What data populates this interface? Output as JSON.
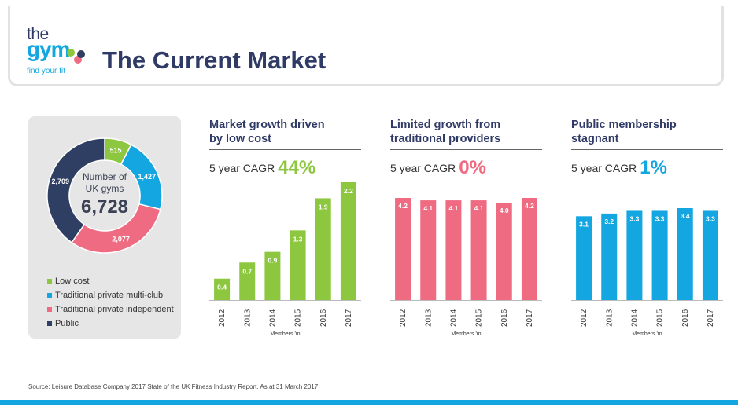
{
  "header": {
    "logo": {
      "line1": "the",
      "line2": "gym",
      "tagline": "find your fit"
    },
    "title": "The Current Market"
  },
  "colors": {
    "navy": "#2f3a66",
    "green": "#8dc63f",
    "blue": "#13a6e0",
    "pink": "#ee6b82",
    "dark": "#2e3f63"
  },
  "chart_data": [
    {
      "type": "pie",
      "variant": "donut",
      "title": "Number of UK gyms",
      "center_label": [
        "Number of",
        "UK gyms"
      ],
      "total_label": "6,728",
      "categories": [
        "Low cost",
        "Traditional private multi-club",
        "Traditional private independent",
        "Public"
      ],
      "values": [
        515,
        1427,
        2077,
        2709
      ],
      "value_labels": [
        "515",
        "1,427",
        "2,077",
        "2,709"
      ],
      "colors": [
        "#8dc63f",
        "#13a6e0",
        "#ee6b82",
        "#2e3f63"
      ],
      "legend": "bottom"
    },
    {
      "type": "bar",
      "title": "Market growth driven by low cost",
      "title_lines": [
        "Market growth driven",
        "by low cost"
      ],
      "cagr_label": "5 year CAGR",
      "cagr_value": "44%",
      "color": "#8dc63f",
      "categories": [
        "2012",
        "2013",
        "2014",
        "2015",
        "2016",
        "2017"
      ],
      "values": [
        0.4,
        0.7,
        0.9,
        1.3,
        1.9,
        2.2
      ],
      "value_labels": [
        "0.4",
        "0.7",
        "0.9",
        "1.3",
        "1.9",
        "2.2"
      ],
      "xlabel": "Members 'm",
      "ylim": [
        0,
        2.2
      ]
    },
    {
      "type": "bar",
      "title": "Limited growth from traditional providers",
      "title_lines": [
        "Limited growth from",
        "traditional providers"
      ],
      "cagr_label": "5 year CAGR",
      "cagr_value": "0%",
      "color": "#ee6b82",
      "categories": [
        "2012",
        "2013",
        "2014",
        "2015",
        "2016",
        "2017"
      ],
      "values": [
        4.2,
        4.1,
        4.1,
        4.1,
        4.0,
        4.2
      ],
      "value_labels": [
        "4.2",
        "4.1",
        "4.1",
        "4.1",
        "4.0",
        "4.2"
      ],
      "xlabel": "Members 'm",
      "ylim": [
        0,
        4.2
      ]
    },
    {
      "type": "bar",
      "title": "Public membership stagnant",
      "title_lines": [
        "Public membership",
        "stagnant"
      ],
      "cagr_label": "5 year CAGR",
      "cagr_value": "1%",
      "color": "#13a6e0",
      "categories": [
        "2012",
        "2013",
        "2014",
        "2015",
        "2016",
        "2017"
      ],
      "values": [
        3.1,
        3.2,
        3.3,
        3.3,
        3.4,
        3.3
      ],
      "value_labels": [
        "3.1",
        "3.2",
        "3.3",
        "3.3",
        "3.4",
        "3.3"
      ],
      "xlabel": "Members 'm",
      "ylim": [
        0,
        3.4
      ]
    }
  ],
  "footer": {
    "source": "Source:  Leisure Database Company 2017 State of the UK Fitness Industry Report. As at 31 March 2017."
  }
}
